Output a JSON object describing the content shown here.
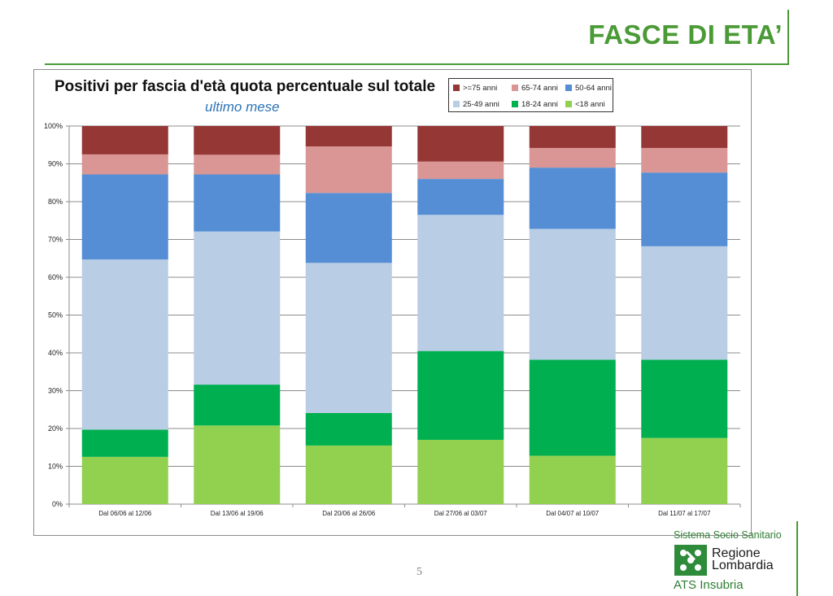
{
  "header": {
    "title": "FASCE DI ETA’"
  },
  "chart": {
    "title": "Positivi per fascia d'età quota percentuale sul totale",
    "subtitle": "ultimo mese"
  },
  "chart_data": {
    "type": "bar",
    "stacked": true,
    "percent": true,
    "categories": [
      "Dal 06/06 al 12/06",
      "Dal 13/06 al 19/06",
      "Dal 20/06 al 26/06",
      "Dal 27/06 al 03/07",
      "Dal 04/07 al 10/07",
      "Dal 11/07 al 17/07"
    ],
    "y_ticks": [
      "0%",
      "10%",
      "20%",
      "30%",
      "40%",
      "50%",
      "60%",
      "70%",
      "80%",
      "90%",
      "100%"
    ],
    "ylim": [
      0,
      100
    ],
    "grid": true,
    "legend_position": "top-right",
    "series": [
      {
        "name": "<18 anni",
        "color": "#92d050",
        "values": [
          12.5,
          20.8,
          15.5,
          17.0,
          12.8,
          17.5
        ]
      },
      {
        "name": "18-24 anni",
        "color": "#00b050",
        "values": [
          7.2,
          10.8,
          8.6,
          23.5,
          25.4,
          20.7
        ]
      },
      {
        "name": "25-49 anni",
        "color": "#b9cde5",
        "values": [
          45.0,
          40.5,
          39.7,
          36.0,
          34.6,
          30.0
        ]
      },
      {
        "name": "50-64 anni",
        "color": "#558ed5",
        "values": [
          22.5,
          15.1,
          18.5,
          9.5,
          16.2,
          19.5
        ]
      },
      {
        "name": "65-74 anni",
        "color": "#d99694",
        "values": [
          5.3,
          5.2,
          12.3,
          4.6,
          5.2,
          6.5
        ]
      },
      {
        "name": ">=75 anni",
        "color": "#953735",
        "values": [
          7.5,
          7.6,
          5.4,
          9.4,
          5.8,
          5.8
        ]
      }
    ],
    "legend_order": [
      ">=75 anni",
      "65-74 anni",
      "50-64 anni",
      "25-49 anni",
      "18-24 anni",
      "<18 anni"
    ]
  },
  "footer": {
    "page_number": "5",
    "logo_system": "Sistema Socio Sanitario",
    "logo_region_line1": "Regione",
    "logo_region_line2": "Lombardia",
    "logo_ats": "ATS Insubria"
  }
}
